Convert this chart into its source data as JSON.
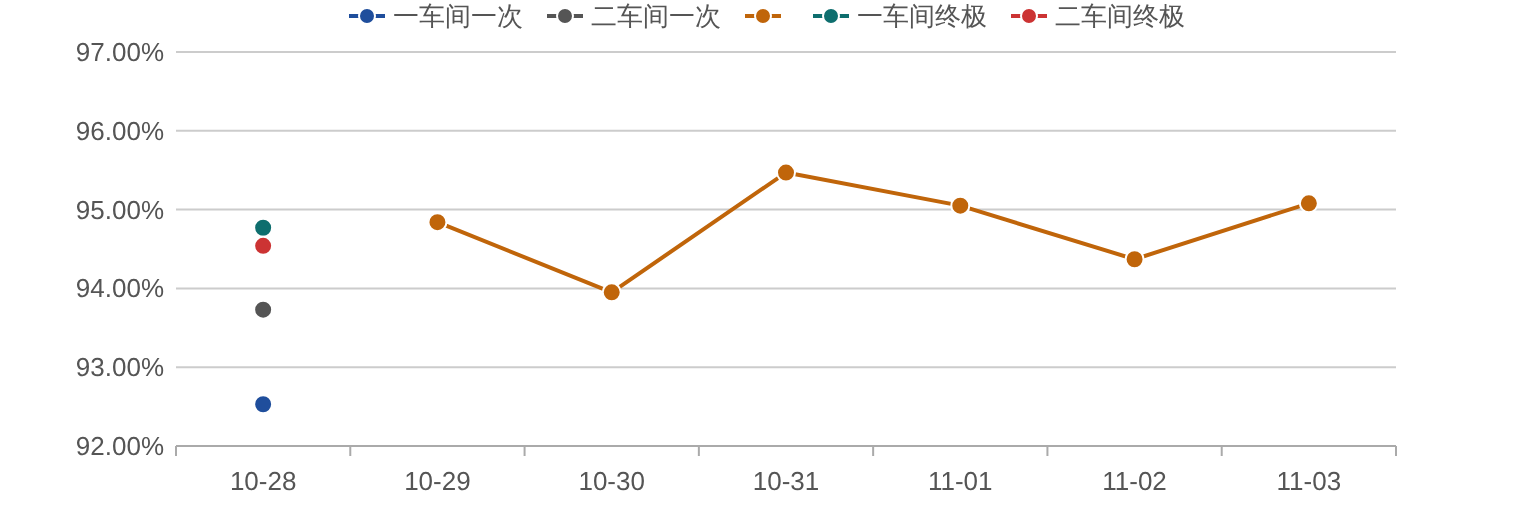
{
  "chart_data": {
    "type": "line",
    "categories": [
      "10-28",
      "10-29",
      "10-30",
      "10-31",
      "11-01",
      "11-02",
      "11-03"
    ],
    "series": [
      {
        "name": "一车间一次",
        "color": "#1f4e9c",
        "values": [
          92.53,
          null,
          null,
          null,
          null,
          null,
          null
        ]
      },
      {
        "name": "二车间一次",
        "color": "#555555",
        "values": [
          93.73,
          null,
          null,
          null,
          null,
          null,
          null
        ]
      },
      {
        "color": "#c0650a",
        "values": [
          null,
          94.84,
          93.95,
          95.47,
          95.05,
          94.37,
          95.08
        ]
      },
      {
        "name": "一车间终极",
        "color": "#0e6e6e",
        "values": [
          94.77,
          null,
          null,
          null,
          null,
          null,
          null
        ]
      },
      {
        "name": "二车间终极",
        "color": "#cc3333",
        "values": [
          94.54,
          null,
          null,
          null,
          null,
          null,
          null
        ]
      }
    ],
    "ylim": [
      92,
      97
    ],
    "yticks": [
      {
        "value": 92,
        "label": "92.00%"
      },
      {
        "value": 93,
        "label": "93.00%"
      },
      {
        "value": 94,
        "label": "94.00%"
      },
      {
        "value": 95,
        "label": "95.00%"
      },
      {
        "value": 96,
        "label": "96.00%"
      },
      {
        "value": 97,
        "label": "97.00%"
      }
    ],
    "grid": "y",
    "legend": "top",
    "marker": "circle",
    "line_style": "solid"
  }
}
